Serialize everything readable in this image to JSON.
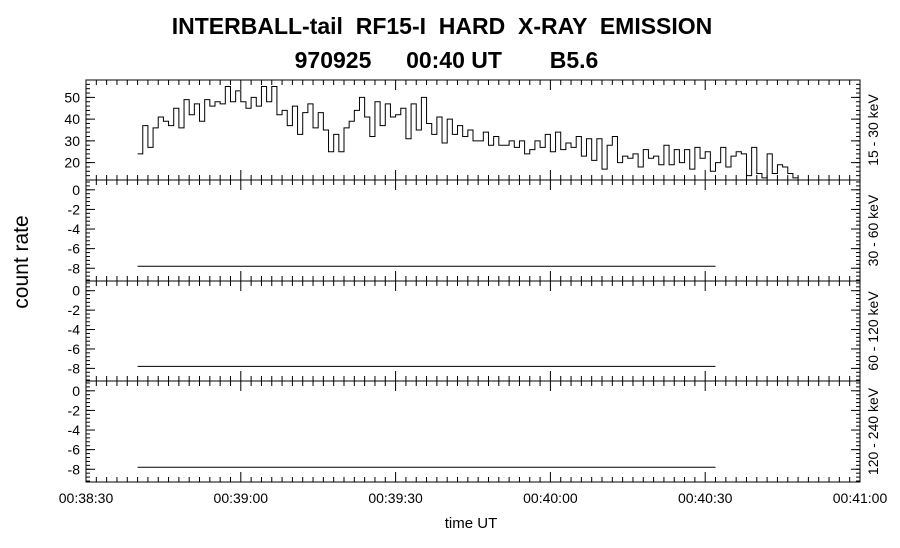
{
  "title_line1": "INTERBALL-tail  RF15-I  HARD  X-RAY  EMISSION",
  "title_line2_parts": [
    "970925",
    "00:40 UT",
    "B5.6"
  ],
  "ylabel": "count rate",
  "xlabel": "time UT",
  "xtick_labels": [
    "00:38:30",
    "00:39:00",
    "00:39:30",
    "00:40:00",
    "00:40:30",
    "00:41:00"
  ],
  "chart_data": {
    "type": "line",
    "line_style": "step",
    "x_unit": "seconds after 00:38:30 UT",
    "xlim": [
      0,
      150
    ],
    "xticks": [
      0,
      30,
      60,
      90,
      120,
      150
    ],
    "xtick_labels": [
      "00:38:30",
      "00:39:00",
      "00:39:30",
      "00:40:00",
      "00:40:30",
      "00:41:00"
    ],
    "xlabel": "time UT",
    "ylabel": "count rate",
    "panels": [
      {
        "band": "15 - 30 keV",
        "ylim": [
          12,
          58
        ],
        "yticks": [
          20,
          30,
          40,
          50
        ],
        "ytick_labels": [
          "20",
          "30",
          "40",
          "50"
        ],
        "x_start": 10,
        "x_step": 1,
        "values": [
          24,
          37,
          27,
          36,
          41,
          39,
          37,
          45,
          36,
          49,
          42,
          47,
          39,
          49,
          46,
          48,
          47,
          55,
          48,
          53,
          48,
          45,
          50,
          46,
          55,
          48,
          55,
          42,
          44,
          37,
          46,
          33,
          43,
          47,
          36,
          43,
          35,
          25,
          33,
          25,
          36,
          39,
          44,
          50,
          41,
          32,
          48,
          37,
          47,
          41,
          42,
          45,
          31,
          47,
          35,
          50,
          38,
          33,
          41,
          29,
          40,
          33,
          37,
          32,
          35,
          30,
          30,
          34,
          28,
          32,
          28,
          28,
          30,
          27,
          30,
          24,
          26,
          30,
          27,
          33,
          25,
          34,
          26,
          29,
          27,
          32,
          23,
          31,
          21,
          31,
          17,
          28,
          32,
          20,
          23,
          22,
          24,
          18,
          26,
          22,
          23,
          19,
          28,
          19,
          26,
          20,
          26,
          17,
          27,
          22,
          25,
          16,
          20,
          27,
          18,
          23,
          25,
          24,
          14,
          27,
          15,
          13,
          24,
          15,
          19,
          18,
          15,
          13
        ]
      },
      {
        "band": "30 - 60 keV",
        "ylim": [
          -9.3,
          1.0
        ],
        "yticks": [
          -8,
          -6,
          -4,
          -2,
          0
        ],
        "ytick_labels": [
          "-8",
          "-6",
          "-4",
          "-2",
          "0"
        ],
        "x_start": 10,
        "x_end": 122,
        "constant_value": -7.8
      },
      {
        "band": "60 - 120 keV",
        "ylim": [
          -9.3,
          1.0
        ],
        "yticks": [
          -8,
          -6,
          -4,
          -2,
          0
        ],
        "ytick_labels": [
          "-8",
          "-6",
          "-4",
          "-2",
          "0"
        ],
        "x_start": 10,
        "x_end": 122,
        "constant_value": -7.8
      },
      {
        "band": "120 - 240 keV",
        "ylim": [
          -9.3,
          1.0
        ],
        "yticks": [
          -8,
          -6,
          -4,
          -2,
          0
        ],
        "ytick_labels": [
          "-8",
          "-6",
          "-4",
          "-2",
          "0"
        ],
        "x_start": 10,
        "x_end": 122,
        "constant_value": -7.8
      }
    ]
  }
}
